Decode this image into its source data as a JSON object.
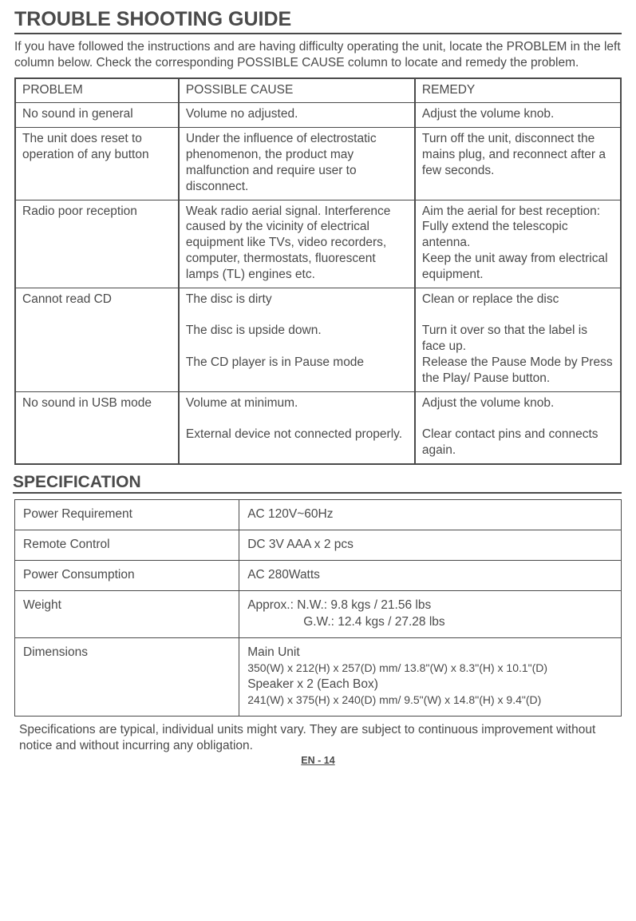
{
  "title": "TROUBLE SHOOTING GUIDE",
  "intro": "If you have followed the instructions and are having difficulty operating the unit, locate the PROBLEM in the left column below. Check the corresponding POSSIBLE CAUSE column to locate and remedy the problem.",
  "trouble": {
    "headers": {
      "c1": "PROBLEM",
      "c2": "POSSIBLE CAUSE",
      "c3": "REMEDY"
    },
    "rows": [
      {
        "c1": "No sound in general",
        "c2": "Volume no adjusted.",
        "c3": "Adjust the volume knob."
      },
      {
        "c1": "The unit does reset to operation of any button",
        "c2": "Under the influence of electrostatic phenomenon, the product may malfunction and require user to disconnect.",
        "c3": "Turn off the unit, disconnect the mains plug, and reconnect after a few seconds."
      },
      {
        "c1": "Radio poor reception",
        "c2": "Weak radio aerial signal. Interference caused by the vicinity of electrical equipment like TVs, video recorders, computer, thermostats, fluorescent lamps (TL) engines etc.",
        "c3": "Aim the aerial for best reception:\nFully extend the telescopic antenna.\nKeep the unit away from electrical equipment."
      },
      {
        "c1": "Cannot read CD",
        "c2": "The disc is dirty\n\nThe disc is upside down.\n\nThe CD player is in Pause mode",
        "c3": "Clean or replace the disc\n\nTurn it over so that the label is face up.\nRelease the Pause Mode by Press the Play/ Pause button."
      },
      {
        "c1": "No sound in USB mode",
        "c2": "Volume at minimum.\n\nExternal device not connected properly.",
        "c3": "Adjust the volume knob.\n\nClear contact pins and connects again."
      }
    ]
  },
  "spec_title": "SPECIFICATION",
  "spec": {
    "rows": [
      {
        "label": "Power Requirement",
        "value": "AC 120V~60Hz"
      },
      {
        "label": "Remote Control",
        "value": "DC 3V AAA x 2 pcs"
      },
      {
        "label": "Power Consumption",
        "value": "AC 280Watts"
      }
    ],
    "weight": {
      "label": "Weight",
      "line1": "Approx.: N.W.: 9.8 kgs / 21.56 lbs",
      "line2": "G.W.: 12.4 kgs /  27.28 lbs"
    },
    "dimensions": {
      "label": "Dimensions",
      "main_label": "Main Unit",
      "main_value": "350(W) x 212(H) x 257(D) mm/ 13.8\"(W) x 8.3\"(H) x 10.1\"(D)",
      "speaker_label": "Speaker x 2 (Each Box)",
      "speaker_value": "241(W) x 375(H) x 240(D) mm/ 9.5\"(W) x 14.8\"(H) x 9.4\"(D)"
    }
  },
  "footnote": "Specifications are typical, individual units might vary. They are subject to continuous improvement without notice and without incurring any obligation.",
  "page_num": "EN - 14"
}
